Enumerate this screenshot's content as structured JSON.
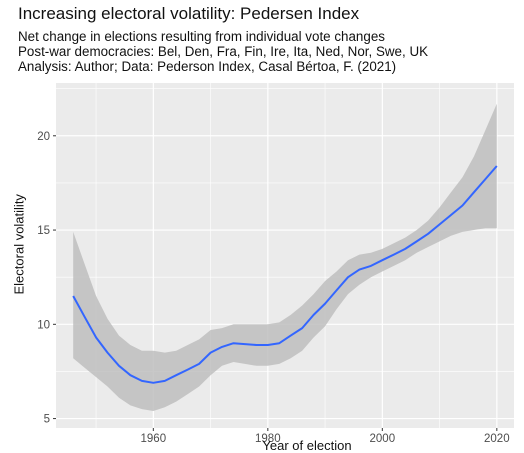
{
  "chart_data": {
    "type": "line",
    "title": "Increasing electoral volatility: Pedersen Index",
    "subtitle": [
      "Net change in elections resulting from individual vote changes",
      "Post-war democracies: Bel, Den, Fra, Fin, Ire, Ita, Ned, Nor, Swe, UK",
      "Analysis: Author; Data: Pederson Index, Casal Bértoa, F. (2021)"
    ],
    "xlabel": "Year of election",
    "ylabel": "Electoral volatility",
    "xlim": [
      1943,
      2023
    ],
    "ylim": [
      4.5,
      22.8
    ],
    "xticks": [
      1960,
      1980,
      2000,
      2020
    ],
    "yticks": [
      5,
      10,
      15,
      20
    ],
    "grid": true,
    "series": [
      {
        "color": "#3366ff",
        "band_color": "#bebebe",
        "x": [
          1946,
          1948,
          1950,
          1952,
          1954,
          1956,
          1958,
          1960,
          1962,
          1964,
          1966,
          1968,
          1970,
          1972,
          1974,
          1976,
          1978,
          1980,
          1982,
          1984,
          1986,
          1988,
          1990,
          1992,
          1994,
          1996,
          1998,
          2000,
          2002,
          2004,
          2006,
          2008,
          2010,
          2012,
          2014,
          2016,
          2018,
          2020
        ],
        "y": [
          11.5,
          10.4,
          9.3,
          8.5,
          7.8,
          7.3,
          7.0,
          6.9,
          7.0,
          7.3,
          7.6,
          7.9,
          8.5,
          8.8,
          9.0,
          8.95,
          8.9,
          8.9,
          9.0,
          9.4,
          9.8,
          10.5,
          11.1,
          11.8,
          12.5,
          12.9,
          13.1,
          13.4,
          13.7,
          14.0,
          14.4,
          14.8,
          15.3,
          15.8,
          16.3,
          17.0,
          17.7,
          18.4
        ],
        "lower": [
          8.2,
          7.7,
          7.2,
          6.7,
          6.1,
          5.7,
          5.5,
          5.4,
          5.6,
          5.9,
          6.3,
          6.7,
          7.3,
          7.8,
          8.0,
          7.9,
          7.8,
          7.8,
          7.9,
          8.2,
          8.6,
          9.3,
          9.9,
          10.8,
          11.6,
          12.1,
          12.5,
          12.8,
          13.1,
          13.4,
          13.8,
          14.1,
          14.4,
          14.7,
          14.9,
          15.0,
          15.1,
          15.1
        ],
        "upper": [
          14.9,
          13.2,
          11.5,
          10.3,
          9.4,
          8.9,
          8.6,
          8.6,
          8.5,
          8.6,
          8.9,
          9.2,
          9.7,
          9.8,
          10.0,
          10.0,
          10.0,
          10.0,
          10.1,
          10.5,
          11.0,
          11.6,
          12.3,
          12.8,
          13.4,
          13.7,
          13.8,
          14.0,
          14.3,
          14.6,
          15.0,
          15.5,
          16.2,
          17.0,
          17.8,
          18.9,
          20.3,
          21.7
        ]
      }
    ]
  }
}
